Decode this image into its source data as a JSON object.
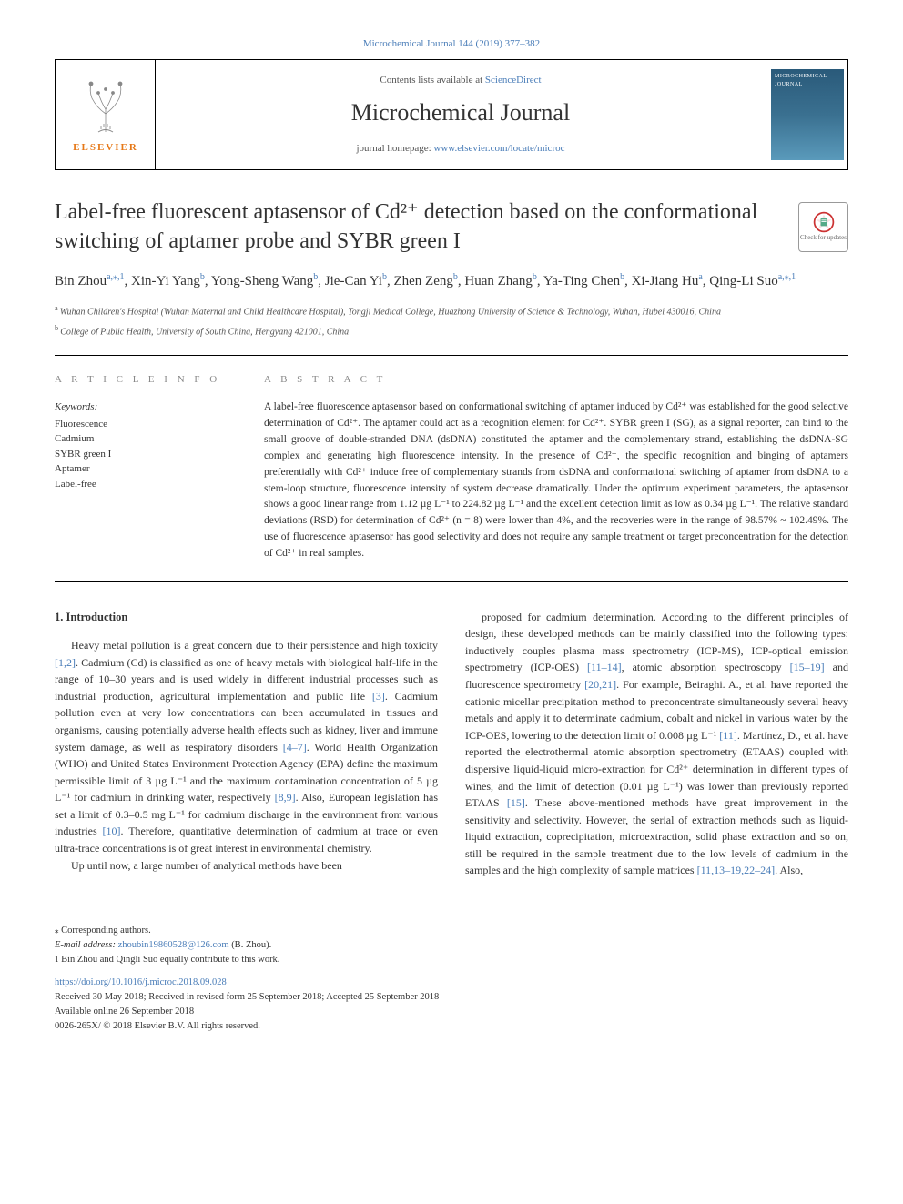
{
  "top_journal_link": "Microchemical Journal 144 (2019) 377–382",
  "header": {
    "contents_prefix": "Contents lists available at ",
    "contents_link_text": "ScienceDirect",
    "journal_title": "Microchemical Journal",
    "homepage_prefix": "journal homepage: ",
    "homepage_link_text": "www.elsevier.com/locate/microc",
    "publisher_name": "ELSEVIER",
    "cover_label": "MICROCHEMICAL JOURNAL"
  },
  "check_updates_label": "Check for updates",
  "article": {
    "title": "Label-free fluorescent aptasensor of Cd²⁺ detection based on the conformational switching of aptamer probe and SYBR green I",
    "authors_html_parts": [
      {
        "name": "Bin Zhou",
        "sup": "a,⁎,1"
      },
      {
        "name": "Xin-Yi Yang",
        "sup": "b"
      },
      {
        "name": "Yong-Sheng Wang",
        "sup": "b"
      },
      {
        "name": "Jie-Can Yi",
        "sup": "b"
      },
      {
        "name": "Zhen Zeng",
        "sup": "b"
      },
      {
        "name": "Huan Zhang",
        "sup": "b"
      },
      {
        "name": "Ya-Ting Chen",
        "sup": "b"
      },
      {
        "name": "Xi-Jiang Hu",
        "sup": "a"
      },
      {
        "name": "Qing-Li Suo",
        "sup": "a,⁎,1"
      }
    ],
    "affiliations": [
      {
        "label": "a",
        "text": "Wuhan Children's Hospital (Wuhan Maternal and Child Healthcare Hospital), Tongji Medical College, Huazhong University of Science & Technology, Wuhan, Hubei 430016, China"
      },
      {
        "label": "b",
        "text": "College of Public Health, University of South China, Hengyang 421001, China"
      }
    ]
  },
  "info": {
    "heading": "A R T I C L E  I N F O",
    "keywords_label": "Keywords:",
    "keywords": [
      "Fluorescence",
      "Cadmium",
      "SYBR green I",
      "Aptamer",
      "Label-free"
    ]
  },
  "abstract": {
    "heading": "A B S T R A C T",
    "text": "A label-free fluorescence aptasensor based on conformational switching of aptamer induced by Cd²⁺ was established for the good selective determination of Cd²⁺. The aptamer could act as a recognition element for Cd²⁺. SYBR green I (SG), as a signal reporter, can bind to the small groove of double-stranded DNA (dsDNA) constituted the aptamer and the complementary strand, establishing the dsDNA-SG complex and generating high fluorescence intensity. In the presence of Cd²⁺, the specific recognition and binging of aptamers preferentially with Cd²⁺ induce free of complementary strands from dsDNA and conformational switching of aptamer from dsDNA to a stem-loop structure, fluorescence intensity of system decrease dramatically. Under the optimum experiment parameters, the aptasensor shows a good linear range from 1.12 µg L⁻¹ to 224.82 µg L⁻¹ and the excellent detection limit as low as 0.34 µg L⁻¹. The relative standard deviations (RSD) for determination of Cd²⁺ (n = 8) were lower than 4%, and the recoveries were in the range of 98.57% ~ 102.49%. The use of fluorescence aptasensor has good selectivity and does not require any sample treatment or target preconcentration for the detection of Cd²⁺ in real samples."
  },
  "body": {
    "section_number": "1.",
    "section_title": "Introduction",
    "col1_paragraphs": [
      "Heavy metal pollution is a great concern due to their persistence and high toxicity [1,2]. Cadmium (Cd) is classified as one of heavy metals with biological half-life in the range of 10–30 years and is used widely in different industrial processes such as industrial production, agricultural implementation and public life [3]. Cadmium pollution even at very low concentrations can been accumulated in tissues and organisms, causing potentially adverse health effects such as kidney, liver and immune system damage, as well as respiratory disorders [4–7]. World Health Organization (WHO) and United States Environment Protection Agency (EPA) define the maximum permissible limit of 3 µg L⁻¹ and the maximum contamination concentration of 5 µg L⁻¹ for cadmium in drinking water, respectively [8,9]. Also, European legislation has set a limit of 0.3–0.5 mg L⁻¹ for cadmium discharge in the environment from various industries [10]. Therefore, quantitative determination of cadmium at trace or even ultra-trace concentrations is of great interest in environmental chemistry.",
      "Up until now, a large number of analytical methods have been"
    ],
    "col2_paragraphs": [
      "proposed for cadmium determination. According to the different principles of design, these developed methods can be mainly classified into the following types: inductively couples plasma mass spectrometry (ICP-MS), ICP-optical emission spectrometry (ICP-OES) [11–14], atomic absorption spectroscopy [15–19] and fluorescence spectrometry [20,21]. For example, Beiraghi. A., et al. have reported the cationic micellar precipitation method to preconcentrate simultaneously several heavy metals and apply it to determinate cadmium, cobalt and nickel in various water by the ICP-OES, lowering to the detection limit of 0.008 µg L⁻¹ [11]. Martínez, D., et al. have reported the electrothermal atomic absorption spectrometry (ETAAS) coupled with dispersive liquid-liquid micro-extraction for Cd²⁺ determination in different types of wines, and the limit of detection (0.01 µg L⁻¹) was lower than previously reported ETAAS [15]. These above-mentioned methods have great improvement in the sensitivity and selectivity. However, the serial of extraction methods such as liquid-liquid extraction, coprecipitation, microextraction, solid phase extraction and so on, still be required in the sample treatment due to the low levels of cadmium in the samples and the high complexity of sample matrices [11,13–19,22–24]. Also,"
    ]
  },
  "footer": {
    "corresponding": "Corresponding authors.",
    "email_label": "E-mail address:",
    "email": "zhoubin19860528@126.com",
    "email_suffix": "(B. Zhou).",
    "contrib_note": "Bin Zhou and Qingli Suo equally contribute to this work.",
    "doi": "https://doi.org/10.1016/j.microc.2018.09.028",
    "received": "Received 30 May 2018; Received in revised form 25 September 2018; Accepted 25 September 2018",
    "available": "Available online 26 September 2018",
    "copyright": "0026-265X/ © 2018 Elsevier B.V. All rights reserved."
  },
  "colors": {
    "link": "#4a7db8",
    "elsevier_orange": "#e67817",
    "text": "#333333",
    "muted": "#888888"
  }
}
